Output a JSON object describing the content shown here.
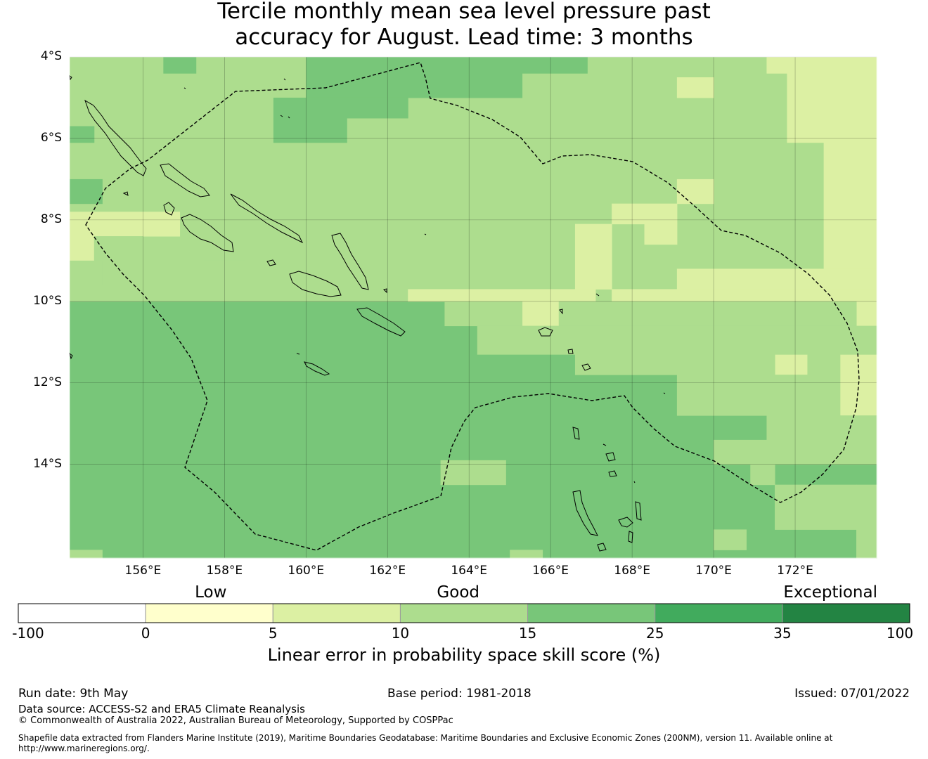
{
  "title_line1": "Tercile monthly mean sea level pressure past",
  "title_line2": "accuracy for August. Lead time: 3 months",
  "map": {
    "lon_range": [
      154.2,
      174.0
    ],
    "lat_range": [
      -16.3,
      -4.0
    ],
    "lat_ticks": [
      {
        "lat": -4,
        "label": "4°S"
      },
      {
        "lat": -6,
        "label": "6°S"
      },
      {
        "lat": -8,
        "label": "8°S"
      },
      {
        "lat": -10,
        "label": "10°S"
      },
      {
        "lat": -12,
        "label": "12°S"
      },
      {
        "lat": -14,
        "label": "14°S"
      }
    ],
    "lon_ticks": [
      {
        "lon": 156,
        "label": "156°E"
      },
      {
        "lon": 158,
        "label": "158°E"
      },
      {
        "lon": 160,
        "label": "160°E"
      },
      {
        "lon": 162,
        "label": "162°E"
      },
      {
        "lon": 164,
        "label": "164°E"
      },
      {
        "lon": 166,
        "label": "166°E"
      },
      {
        "lon": 168,
        "label": "168°E"
      },
      {
        "lon": 170,
        "label": "170°E"
      },
      {
        "lon": 172,
        "label": "172°E"
      }
    ],
    "grid_on": true,
    "skill_levels": [
      {
        "level": 2,
        "color": "#dcf0a3"
      },
      {
        "level": 3,
        "color": "#addd8e"
      },
      {
        "level": 4,
        "color": "#78c679"
      }
    ],
    "base_level": 3,
    "patches": [
      {
        "lat": [
          -16.3,
          -10.0
        ],
        "lon": [
          154.2,
          174.0
        ],
        "level": 4
      },
      {
        "lat": [
          -4.0,
          -10.0
        ],
        "lon": [
          154.2,
          174.0
        ],
        "level": 3
      },
      {
        "lat": [
          -4.0,
          -4.4
        ],
        "lon": [
          156.5,
          157.3
        ],
        "level": 4
      },
      {
        "lat": [
          -4.0,
          -5.0
        ],
        "lon": [
          160.0,
          165.3
        ],
        "level": 4
      },
      {
        "lat": [
          -4.0,
          -4.4
        ],
        "lon": [
          165.3,
          166.9
        ],
        "level": 4
      },
      {
        "lat": [
          -5.0,
          -5.5
        ],
        "lon": [
          159.2,
          162.5
        ],
        "level": 4
      },
      {
        "lat": [
          -5.5,
          -6.1
        ],
        "lon": [
          159.2,
          161.0
        ],
        "level": 4
      },
      {
        "lat": [
          -5.7,
          -6.1
        ],
        "lon": [
          154.2,
          154.8
        ],
        "level": 4
      },
      {
        "lat": [
          -7.0,
          -7.6
        ],
        "lon": [
          154.2,
          155.0
        ],
        "level": 4
      },
      {
        "lat": [
          -4.0,
          -4.4
        ],
        "lon": [
          171.3,
          174.0
        ],
        "level": 2
      },
      {
        "lat": [
          -4.4,
          -9.2
        ],
        "lon": [
          172.7,
          174.0
        ],
        "level": 2
      },
      {
        "lat": [
          -4.4,
          -6.1
        ],
        "lon": [
          171.8,
          172.7
        ],
        "level": 2
      },
      {
        "lat": [
          -4.5,
          -5.0
        ],
        "lon": [
          169.1,
          170.0
        ],
        "level": 2
      },
      {
        "lat": [
          -7.0,
          -7.6
        ],
        "lon": [
          169.1,
          170.0
        ],
        "level": 2
      },
      {
        "lat": [
          -7.6,
          -8.1
        ],
        "lon": [
          167.5,
          169.1
        ],
        "level": 2
      },
      {
        "lat": [
          -8.1,
          -8.6
        ],
        "lon": [
          168.3,
          169.1
        ],
        "level": 2
      },
      {
        "lat": [
          -8.1,
          -9.7
        ],
        "lon": [
          166.6,
          167.5
        ],
        "level": 2
      },
      {
        "lat": [
          -9.2,
          -9.7
        ],
        "lon": [
          169.1,
          174.0
        ],
        "level": 2
      },
      {
        "lat": [
          -9.7,
          -10.0
        ],
        "lon": [
          162.5,
          167.1
        ],
        "level": 2
      },
      {
        "lat": [
          -9.7,
          -11.3
        ],
        "lon": [
          167.5,
          174.0
        ],
        "level": 2
      },
      {
        "lat": [
          -11.3,
          -11.8
        ],
        "lon": [
          171.5,
          172.3
        ],
        "level": 2
      },
      {
        "lat": [
          -11.3,
          -12.8
        ],
        "lon": [
          173.1,
          174.0
        ],
        "level": 2
      },
      {
        "lat": [
          -7.8,
          -8.4
        ],
        "lon": [
          154.2,
          156.9
        ],
        "level": 2
      },
      {
        "lat": [
          -8.4,
          -9.0
        ],
        "lon": [
          154.2,
          155.0
        ],
        "level": 2
      },
      {
        "lat": [
          -10.0,
          -10.6
        ],
        "lon": [
          165.3,
          166.2
        ],
        "level": 2
      },
      {
        "lat": [
          -10.0,
          -10.6
        ],
        "lon": [
          173.5,
          174.0
        ],
        "level": 2
      },
      {
        "lat": [
          -8.4,
          -9.0
        ],
        "lon": [
          154.8,
          156.0
        ],
        "level": 3
      },
      {
        "lat": [
          -9.0,
          -9.6
        ],
        "lon": [
          154.2,
          155.0
        ],
        "level": 3
      },
      {
        "lat": [
          -9.0,
          -9.6
        ],
        "lon": [
          157.5,
          158.5
        ],
        "level": 3
      },
      {
        "lat": [
          -10.0,
          -10.6
        ],
        "lon": [
          163.4,
          165.3
        ],
        "level": 3
      },
      {
        "lat": [
          -10.0,
          -10.6
        ],
        "lon": [
          166.2,
          173.5
        ],
        "level": 3
      },
      {
        "lat": [
          -10.6,
          -11.3
        ],
        "lon": [
          164.2,
          174.0
        ],
        "level": 3
      },
      {
        "lat": [
          -11.3,
          -11.8
        ],
        "lon": [
          166.6,
          171.5
        ],
        "level": 3
      },
      {
        "lat": [
          -11.3,
          -11.8
        ],
        "lon": [
          172.3,
          173.1
        ],
        "level": 3
      },
      {
        "lat": [
          -11.8,
          -12.8
        ],
        "lon": [
          169.1,
          173.1
        ],
        "level": 3
      },
      {
        "lat": [
          -12.8,
          -13.4
        ],
        "lon": [
          171.3,
          174.0
        ],
        "level": 3
      },
      {
        "lat": [
          -13.4,
          -14.0
        ],
        "lon": [
          170.0,
          174.0
        ],
        "level": 3
      },
      {
        "lat": [
          -14.0,
          -14.5
        ],
        "lon": [
          170.9,
          171.5
        ],
        "level": 3
      },
      {
        "lat": [
          -14.5,
          -15.6
        ],
        "lon": [
          171.5,
          173.5
        ],
        "level": 3
      },
      {
        "lat": [
          -14.5,
          -16.3
        ],
        "lon": [
          173.5,
          174.0
        ],
        "level": 3
      },
      {
        "lat": [
          -13.9,
          -14.5
        ],
        "lon": [
          163.3,
          164.9
        ],
        "level": 3
      },
      {
        "lat": [
          -15.6,
          -16.1
        ],
        "lon": [
          170.0,
          170.8
        ],
        "level": 3
      },
      {
        "lat": [
          -16.1,
          -16.3
        ],
        "lon": [
          154.2,
          155.0
        ],
        "level": 3
      },
      {
        "lat": [
          -16.1,
          -16.3
        ],
        "lon": [
          165.0,
          165.8
        ],
        "level": 3
      }
    ]
  },
  "colorbar": {
    "categories": [
      {
        "value": 0,
        "label": "Low"
      },
      {
        "value": 10,
        "label": "Good"
      },
      {
        "value": 35,
        "label": "Exceptional"
      }
    ],
    "segments": [
      {
        "from": -100,
        "to": 0,
        "color": "#ffffff"
      },
      {
        "from": 0,
        "to": 5,
        "color": "#ffffcc"
      },
      {
        "from": 5,
        "to": 10,
        "color": "#dcf0a3"
      },
      {
        "from": 10,
        "to": 15,
        "color": "#addd8e"
      },
      {
        "from": 15,
        "to": 25,
        "color": "#78c679"
      },
      {
        "from": 25,
        "to": 35,
        "color": "#41ab5d"
      },
      {
        "from": 35,
        "to": 100,
        "color": "#238443"
      }
    ],
    "ticks": [
      "-100",
      "0",
      "5",
      "10",
      "15",
      "25",
      "35",
      "100"
    ],
    "label": "Linear error in probability space skill score (%)"
  },
  "footer": {
    "run_date": "Run date: 9th May",
    "base_period": "Base period: 1981-2018",
    "issued": "Issued: 07/01/2022",
    "data_source": "Data source: ACCESS-S2 and ERA5 Climate Reanalysis",
    "copyright": "© Commonwealth of Australia 2022, Australian Bureau of Meteorology, Supported by COSPPac",
    "shapefile": "Shapefile data extracted from Flanders Marine Institute (2019), Maritime Boundaries Geodatabase: Maritime Boundaries and Exclusive Economic Zones (200NM), version 11. Available online at http://www.marineregions.org/."
  }
}
